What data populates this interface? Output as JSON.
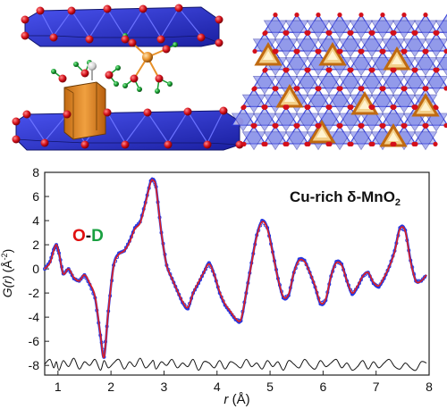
{
  "colors": {
    "octahedra_blue": "#2b35d6",
    "octahedra_light": "#b8bff0",
    "cu_orange": "#e8912a",
    "oxygen_red": "#d4101a",
    "deuterium_green": "#159a2e",
    "data_blue": "#2636e0",
    "fit_red": "#e02020",
    "difference_black": "#111111",
    "od_O": "#e01010",
    "od_D": "#19a040"
  },
  "panels": {
    "top_left": "structure-side-view",
    "top_right": "structure-top-view"
  },
  "chart_data": {
    "type": "line",
    "title_main": "Cu-rich δ-MnO",
    "title_sub": "2",
    "annotation": {
      "o": "O",
      "dash": "-",
      "d": "D"
    },
    "ylabel_parts": {
      "g": "G(",
      "r": "r",
      "close": ")",
      "unit_open": "(Å",
      "unit_exp": "-2",
      "unit_close": ")"
    },
    "xlabel_parts": {
      "r": "r",
      "unit": " (Å)"
    },
    "xlim": [
      0.75,
      8.0
    ],
    "ylim": [
      -8.8,
      8.0
    ],
    "xticks": [
      1,
      2,
      3,
      4,
      5,
      6,
      7,
      8
    ],
    "yticks": [
      8,
      6,
      4,
      2,
      0,
      -2,
      -4,
      -6,
      -8
    ],
    "x": [
      0.75,
      0.85,
      0.92,
      0.97,
      1.02,
      1.1,
      1.2,
      1.3,
      1.4,
      1.5,
      1.6,
      1.7,
      1.8,
      1.87,
      1.95,
      2.05,
      2.15,
      2.25,
      2.35,
      2.45,
      2.55,
      2.65,
      2.75,
      2.8,
      2.85,
      2.95,
      3.05,
      3.15,
      3.25,
      3.35,
      3.45,
      3.55,
      3.65,
      3.75,
      3.85,
      3.95,
      4.05,
      4.15,
      4.25,
      4.35,
      4.45,
      4.55,
      4.65,
      4.75,
      4.85,
      4.95,
      5.05,
      5.15,
      5.25,
      5.35,
      5.45,
      5.55,
      5.65,
      5.75,
      5.85,
      5.95,
      6.05,
      6.15,
      6.25,
      6.35,
      6.45,
      6.55,
      6.65,
      6.75,
      6.85,
      6.95,
      7.05,
      7.15,
      7.25,
      7.35,
      7.45,
      7.55,
      7.65,
      7.75,
      7.85,
      7.95
    ],
    "series": [
      {
        "role": "data",
        "marker": "circle",
        "color": "#2636e0",
        "values": [
          0.0,
          0.6,
          1.6,
          2.0,
          1.3,
          -0.4,
          0.0,
          -0.8,
          -1.0,
          -0.5,
          -1.3,
          -2.4,
          -5.5,
          -7.3,
          -3.5,
          0.3,
          1.3,
          1.5,
          2.3,
          3.4,
          3.9,
          5.5,
          7.3,
          7.4,
          6.8,
          3.0,
          0.3,
          -0.8,
          -1.8,
          -2.8,
          -3.3,
          -2.0,
          -1.2,
          -0.3,
          0.5,
          -0.5,
          -2.0,
          -3.0,
          -3.6,
          -4.2,
          -4.3,
          -2.0,
          0.5,
          2.8,
          4.0,
          3.4,
          1.4,
          -0.8,
          -2.4,
          -2.2,
          -0.3,
          0.8,
          0.7,
          -0.3,
          -1.5,
          -2.9,
          -2.6,
          -0.6,
          0.6,
          0.4,
          -1.0,
          -2.1,
          -1.5,
          -0.6,
          -0.3,
          -1.2,
          -1.5,
          -0.8,
          0.2,
          1.5,
          3.4,
          3.2,
          0.7,
          -1.0,
          -1.0,
          -0.5
        ]
      },
      {
        "role": "fit",
        "marker": "line",
        "color": "#e02020",
        "values": [
          0.0,
          0.5,
          1.5,
          2.0,
          1.3,
          -0.4,
          0.0,
          -0.7,
          -1.0,
          -0.5,
          -1.2,
          -2.3,
          -5.4,
          -7.3,
          -3.5,
          0.2,
          1.2,
          1.5,
          2.2,
          3.3,
          3.8,
          5.4,
          7.2,
          7.3,
          6.7,
          3.0,
          0.3,
          -0.8,
          -1.8,
          -2.7,
          -3.2,
          -2.0,
          -1.1,
          -0.3,
          0.4,
          -0.5,
          -1.9,
          -2.9,
          -3.5,
          -4.1,
          -4.2,
          -2.0,
          0.4,
          2.7,
          3.9,
          3.3,
          1.3,
          -0.8,
          -2.3,
          -2.1,
          -0.3,
          0.7,
          0.6,
          -0.3,
          -1.4,
          -2.8,
          -2.5,
          -0.6,
          0.5,
          0.3,
          -1.0,
          -2.0,
          -1.4,
          -0.6,
          -0.3,
          -1.1,
          -1.4,
          -0.7,
          0.2,
          1.4,
          3.3,
          3.1,
          0.6,
          -1.0,
          -1.0,
          -0.5
        ]
      }
    ],
    "difference": {
      "offset": -7.9,
      "values": [
        0.0,
        0.4,
        -0.3,
        0.2,
        -0.5,
        0.3,
        -0.2,
        0.5,
        -0.4,
        0.2,
        -0.1,
        0.4,
        -0.5,
        0.3,
        -0.3,
        0.1,
        0.4,
        -0.4,
        0.2,
        -0.2,
        0.5,
        -0.3,
        0.1,
        0.3,
        -0.4,
        0.2,
        -0.1,
        0.4,
        -0.3,
        0.1,
        -0.2,
        0.4,
        -0.5,
        0.2,
        0.1,
        -0.3,
        0.3,
        -0.4,
        0.2,
        0.0,
        -0.3,
        0.4,
        -0.2,
        0.1,
        -0.4,
        0.3,
        -0.2,
        0.2,
        -0.5,
        0.3,
        0.0,
        -0.3,
        0.4,
        -0.1,
        -0.4,
        0.3,
        -0.2,
        0.1,
        0.4,
        -0.3,
        0.1,
        -0.5,
        -0.2,
        0.3,
        -0.4,
        0.2,
        -0.3,
        0.1,
        0.4,
        -0.2,
        -0.4,
        0.1,
        -0.3,
        -0.5,
        0.2,
        0.1
      ]
    }
  }
}
